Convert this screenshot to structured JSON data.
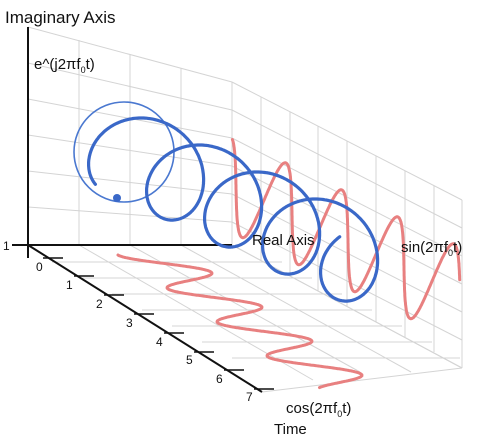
{
  "labels": {
    "imaginary_axis": "Imaginary Axis",
    "real_axis": "Real Axis",
    "time_axis": "Time",
    "complex_exp_prefix": "e^(j2πf",
    "complex_exp_sub": "0",
    "complex_exp_suffix": "t)",
    "sin_prefix": "sin(2πf",
    "sin_sub": "0",
    "sin_suffix": "t)",
    "cos_prefix": "cos(2πf",
    "cos_sub": "0",
    "cos_suffix": "t)",
    "real_tick": "1"
  },
  "time_ticks": [
    "0",
    "1",
    "2",
    "3",
    "4",
    "5",
    "6",
    "7"
  ],
  "colors": {
    "helix": "#3a68c8",
    "helix_start_ring": "#4a78d0",
    "sinusoid": "#e88080",
    "grid": "#d4d4d4",
    "axis": "#111111"
  }
}
